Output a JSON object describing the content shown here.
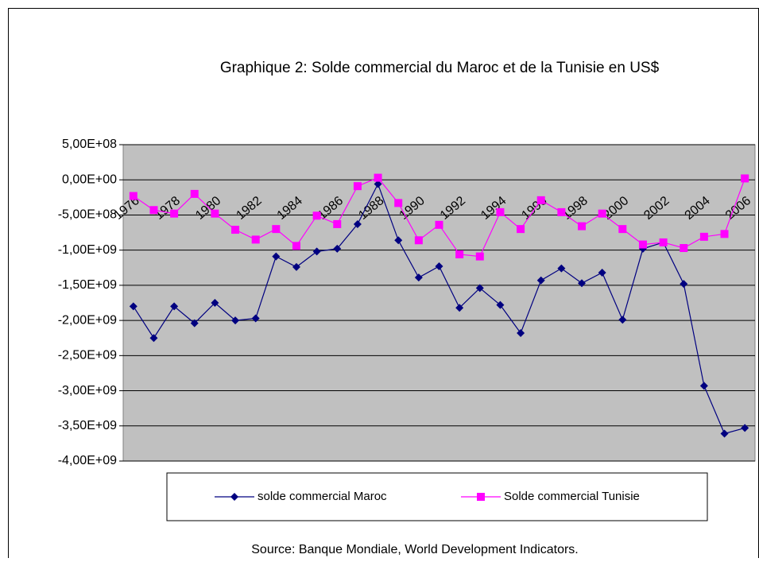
{
  "chart_data": {
    "type": "line",
    "title": "Graphique 2: Solde  commercial du Maroc et de la  Tunisie en US$",
    "source": "Source: Banque Mondiale, World Development Indicators.",
    "categories": [
      "1976",
      null,
      "1978",
      null,
      "1980",
      null,
      "1982",
      null,
      "1984",
      null,
      "1986",
      null,
      "1988",
      null,
      "1990",
      null,
      "1992",
      null,
      "1994",
      null,
      "1996",
      null,
      "1998",
      null,
      "2000",
      null,
      "2002",
      null,
      "2004",
      null,
      "2006"
    ],
    "series": [
      {
        "name": "solde commercial Maroc",
        "color": "#000080",
        "marker": "diamond",
        "values": [
          -1800000000.0,
          -2250000000.0,
          -1800000000.0,
          -2040000000.0,
          -1750000000.0,
          -2000000000.0,
          -1970000000.0,
          -1090000000.0,
          -1240000000.0,
          -1020000000.0,
          -980000000.0,
          -630000000.0,
          -60000000.0,
          -860000000.0,
          -1390000000.0,
          -1230000000.0,
          -1820000000.0,
          -1540000000.0,
          -1780000000.0,
          -2180000000.0,
          -1430000000.0,
          -1260000000.0,
          -1470000000.0,
          -1320000000.0,
          -1990000000.0,
          -980000000.0,
          -890000000.0,
          -1480000000.0,
          -2930000000.0,
          -3610000000.0,
          -3530000000.0
        ]
      },
      {
        "name": "Solde commercial Tunisie",
        "color": "#ff00ff",
        "marker": "square",
        "values": [
          -230000000.0,
          -430000000.0,
          -480000000.0,
          -200000000.0,
          -480000000.0,
          -710000000.0,
          -850000000.0,
          -700000000.0,
          -940000000.0,
          -510000000.0,
          -630000000.0,
          -90000000.0,
          30000000.0,
          -330000000.0,
          -860000000.0,
          -640000000.0,
          -1060000000.0,
          -1090000000.0,
          -460000000.0,
          -700000000.0,
          -290000000.0,
          -460000000.0,
          -660000000.0,
          -480000000.0,
          -700000000.0,
          -920000000.0,
          -890000000.0,
          -970000000.0,
          -810000000.0,
          -770000000.0,
          20000000.0
        ]
      }
    ],
    "ylim": [
      -4000000000.0,
      500000000.0
    ],
    "yticks": [
      {
        "value": 500000000.0,
        "label": "5,00E+08"
      },
      {
        "value": 0,
        "label": "0,00E+00"
      },
      {
        "value": -500000000.0,
        "label": "-5,00E+08"
      },
      {
        "value": -1000000000.0,
        "label": "-1,00E+09"
      },
      {
        "value": -1500000000.0,
        "label": "-1,50E+09"
      },
      {
        "value": -2000000000.0,
        "label": "-2,00E+09"
      },
      {
        "value": -2500000000.0,
        "label": "-2,50E+09"
      },
      {
        "value": -3000000000.0,
        "label": "-3,00E+09"
      },
      {
        "value": -3500000000.0,
        "label": "-3,50E+09"
      },
      {
        "value": -4000000000.0,
        "label": "-4,00E+09"
      }
    ],
    "grid": true,
    "plot_background": "#c0c0c0",
    "legend": "bottom"
  }
}
